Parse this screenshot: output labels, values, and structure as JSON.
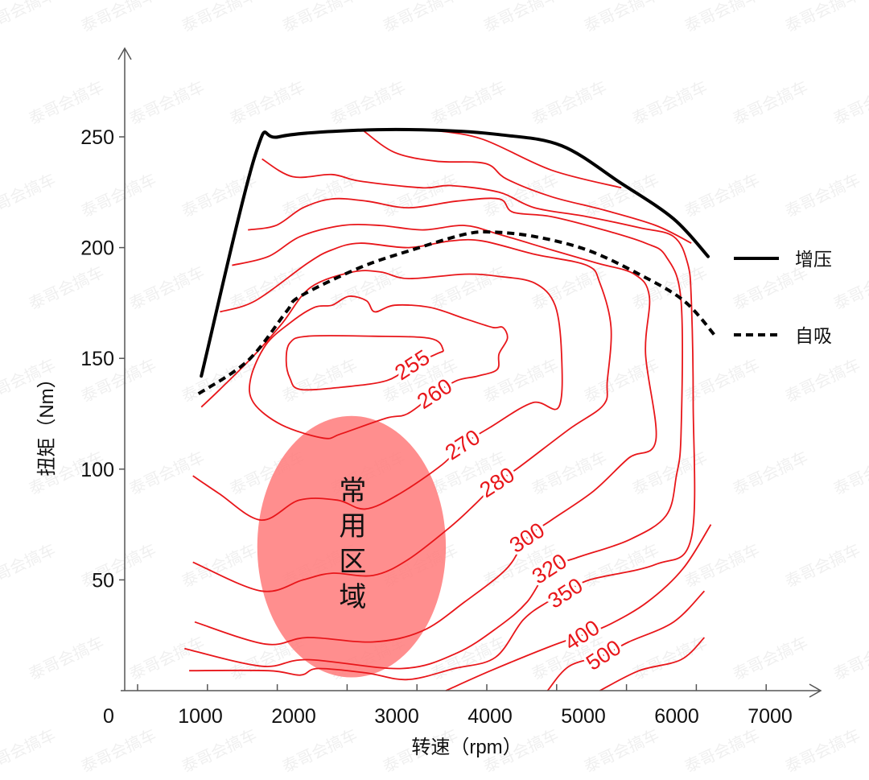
{
  "chart_data": {
    "type": "line",
    "title": "",
    "xlabel": "转速（rpm）",
    "ylabel": "扭矩（Nm）",
    "xlim": [
      0,
      7500
    ],
    "ylim": [
      0,
      280
    ],
    "origin_label": "0",
    "x_ticks": [
      1000,
      2000,
      3000,
      4000,
      5000,
      6000,
      7000
    ],
    "x_tick_labels": [
      "1000",
      "2000",
      "3000",
      "4000",
      "5000",
      "6000",
      "7000"
    ],
    "y_ticks": [
      50,
      100,
      150,
      200,
      250
    ],
    "y_tick_labels": [
      "50",
      "100",
      "150",
      "200",
      "250"
    ],
    "grid": false,
    "legend_position": "right",
    "series": [
      {
        "name": "增压",
        "style": "solid",
        "color": "#000000",
        "x": [
          1010,
          1590,
          1840,
          2710,
          3530,
          4200,
          4870,
          5510,
          6070,
          6440
        ],
        "y": [
          142,
          242,
          250,
          253,
          253,
          251,
          246,
          229,
          213,
          196
        ]
      },
      {
        "name": "自吸",
        "style": "dashed",
        "color": "#000000",
        "x": [
          980,
          1510,
          1920,
          2070,
          2710,
          3270,
          3830,
          4130,
          4580,
          5140,
          5700,
          6180,
          6520
        ],
        "y": [
          134,
          149,
          171,
          178,
          191,
          199,
          206,
          207,
          205,
          199,
          188,
          176,
          160
        ]
      }
    ],
    "contours": [
      {
        "label": "255",
        "closed": true,
        "label_at": [
          3270,
          147
        ],
        "x": [
          1920,
          1960,
          2150,
          2850,
          3460,
          3600,
          3530,
          3270,
          3000,
          2520,
          2070,
          1960
        ],
        "y": [
          149,
          157,
          160,
          160,
          159,
          154,
          152,
          147,
          140,
          137,
          136,
          141
        ]
      },
      {
        "label": "260",
        "closed": true,
        "label_at": [
          3510,
          134
        ],
        "x": [
          1570,
          1540,
          1700,
          1960,
          2220,
          2410,
          2590,
          2780,
          2870,
          3080,
          3460,
          3830,
          4130,
          4240,
          4290,
          4200,
          4180,
          3970,
          3750,
          3510,
          3220,
          2990,
          2510,
          2320,
          1870
        ],
        "y": [
          130,
          141,
          156,
          166,
          173,
          174,
          178,
          176,
          171,
          174,
          173,
          168,
          164,
          164,
          159,
          152,
          145,
          142,
          140,
          134,
          125,
          123,
          116,
          114,
          120
        ]
      },
      {
        "label": "270",
        "closed": false,
        "label_at": [
          3810,
          111
        ],
        "x": [
          1010,
          1210,
          1590,
          1880,
          2180,
          2630,
          2930,
          3230,
          3830,
          4200,
          4580,
          4800,
          4870,
          4840,
          4560,
          4110,
          3810,
          3590,
          3140,
          2770,
          2470,
          2060,
          1650,
          1200,
          920
        ],
        "y": [
          128,
          136,
          152,
          166,
          182,
          189,
          189,
          186,
          188,
          187,
          184,
          174,
          152,
          128,
          130,
          119,
          111,
          102,
          89,
          82,
          86,
          86,
          77,
          89,
          97
        ]
      },
      {
        "label": "280",
        "closed": false,
        "label_at": [
          4180,
          94
        ],
        "x": [
          1210,
          1590,
          2150,
          2410,
          2710,
          3230,
          3680,
          4020,
          4580,
          5140,
          5280,
          5400,
          5360,
          5320,
          4950,
          4420,
          4180,
          3940,
          3680,
          3220,
          2850,
          2410,
          2100,
          1650,
          920
        ],
        "y": [
          171,
          176,
          193,
          199,
          202,
          200,
          203,
          203,
          197,
          192,
          184,
          164,
          140,
          129,
          118,
          101,
          94,
          84,
          74,
          59,
          52,
          53,
          50,
          45,
          58
        ]
      },
      {
        "label": "300",
        "closed": false,
        "label_at": [
          4500,
          69
        ],
        "x": [
          1340,
          1730,
          2070,
          2520,
          2930,
          3380,
          3830,
          4200,
          4760,
          5250,
          5650,
          5810,
          5770,
          5880,
          5590,
          5210,
          4760,
          4500,
          4280,
          3830,
          3380,
          2850,
          2150,
          1700,
          940
        ],
        "y": [
          192,
          196,
          205,
          210,
          210,
          208,
          210,
          206,
          199,
          193,
          188,
          178,
          152,
          113,
          105,
          90,
          77,
          69,
          55,
          40,
          27,
          22,
          24,
          21,
          31
        ]
      },
      {
        "label": "320",
        "closed": false,
        "label_at": [
          4740,
          55
        ],
        "x": [
          1510,
          1810,
          2100,
          2410,
          2780,
          3230,
          3750,
          4200,
          4350,
          4760,
          5320,
          5770,
          5990,
          6150,
          6150,
          6100,
          5990,
          5590,
          5030,
          4740,
          4500,
          4200,
          3750,
          3160,
          2150,
          1660,
          830
        ],
        "y": [
          208,
          210,
          218,
          222,
          221,
          218,
          221,
          222,
          216,
          214,
          208,
          202,
          196,
          176,
          116,
          97,
          79,
          68,
          60,
          55,
          40,
          29,
          17,
          10,
          14,
          11,
          19
        ]
      },
      {
        "label": "350",
        "closed": false,
        "label_at": [
          4910,
          44
        ],
        "x": [
          1660,
          1990,
          2410,
          2710,
          3380,
          3680,
          4200,
          4580,
          5140,
          5700,
          6070,
          6220,
          6260,
          6280,
          6260,
          5880,
          5170,
          4910,
          4720,
          4460,
          4160,
          3720,
          3220,
          2780,
          2260,
          2070,
          1730,
          880
        ],
        "y": [
          240,
          232,
          233,
          230,
          227,
          228,
          225,
          218,
          214,
          209,
          205,
          193,
          176,
          130,
          69,
          57,
          50,
          44,
          40,
          32,
          15,
          10,
          5,
          8,
          10,
          7,
          9,
          9
        ]
      },
      {
        "label": "400",
        "closed": false,
        "label_at": [
          5090,
          25
        ],
        "x": [
          3630,
          4110,
          4750,
          5090,
          5390,
          5790,
          6170,
          6470
        ],
        "y": [
          0,
          9,
          20,
          25,
          30,
          40,
          55,
          75
        ]
      },
      {
        "label": "500",
        "closed": false,
        "label_at": [
          5320,
          16
        ],
        "x": [
          4720,
          4950,
          5320,
          5590,
          6070,
          6400
        ],
        "y": [
          0,
          11,
          16,
          22,
          31,
          45
        ]
      },
      {
        "label": "",
        "closed": false,
        "x": [
          2740,
          3080,
          3530,
          4050,
          4280,
          4760,
          5320,
          5880,
          6260
        ],
        "y": [
          253,
          243,
          239,
          238,
          231,
          223,
          217,
          210,
          202
        ]
      },
      {
        "label": "",
        "closed": false,
        "x": [
          3490,
          4020,
          4760,
          5510
        ],
        "y": [
          253,
          249,
          235,
          227
        ]
      },
      {
        "label": "",
        "closed": false,
        "x": [
          5280,
          5700,
          6150,
          6400
        ],
        "y": [
          0,
          9,
          14,
          24
        ]
      }
    ],
    "region": {
      "label": "常用区域",
      "center": [
        2620,
        65
      ],
      "radius_rpm": 1010,
      "radius_nm": 59,
      "color": "#ff7a7a"
    },
    "legend": [
      {
        "label": "增压",
        "style": "solid"
      },
      {
        "label": "自吸",
        "style": "dashed"
      }
    ],
    "line_color": "#e8161a",
    "watermark": "泰哥会搞车"
  }
}
